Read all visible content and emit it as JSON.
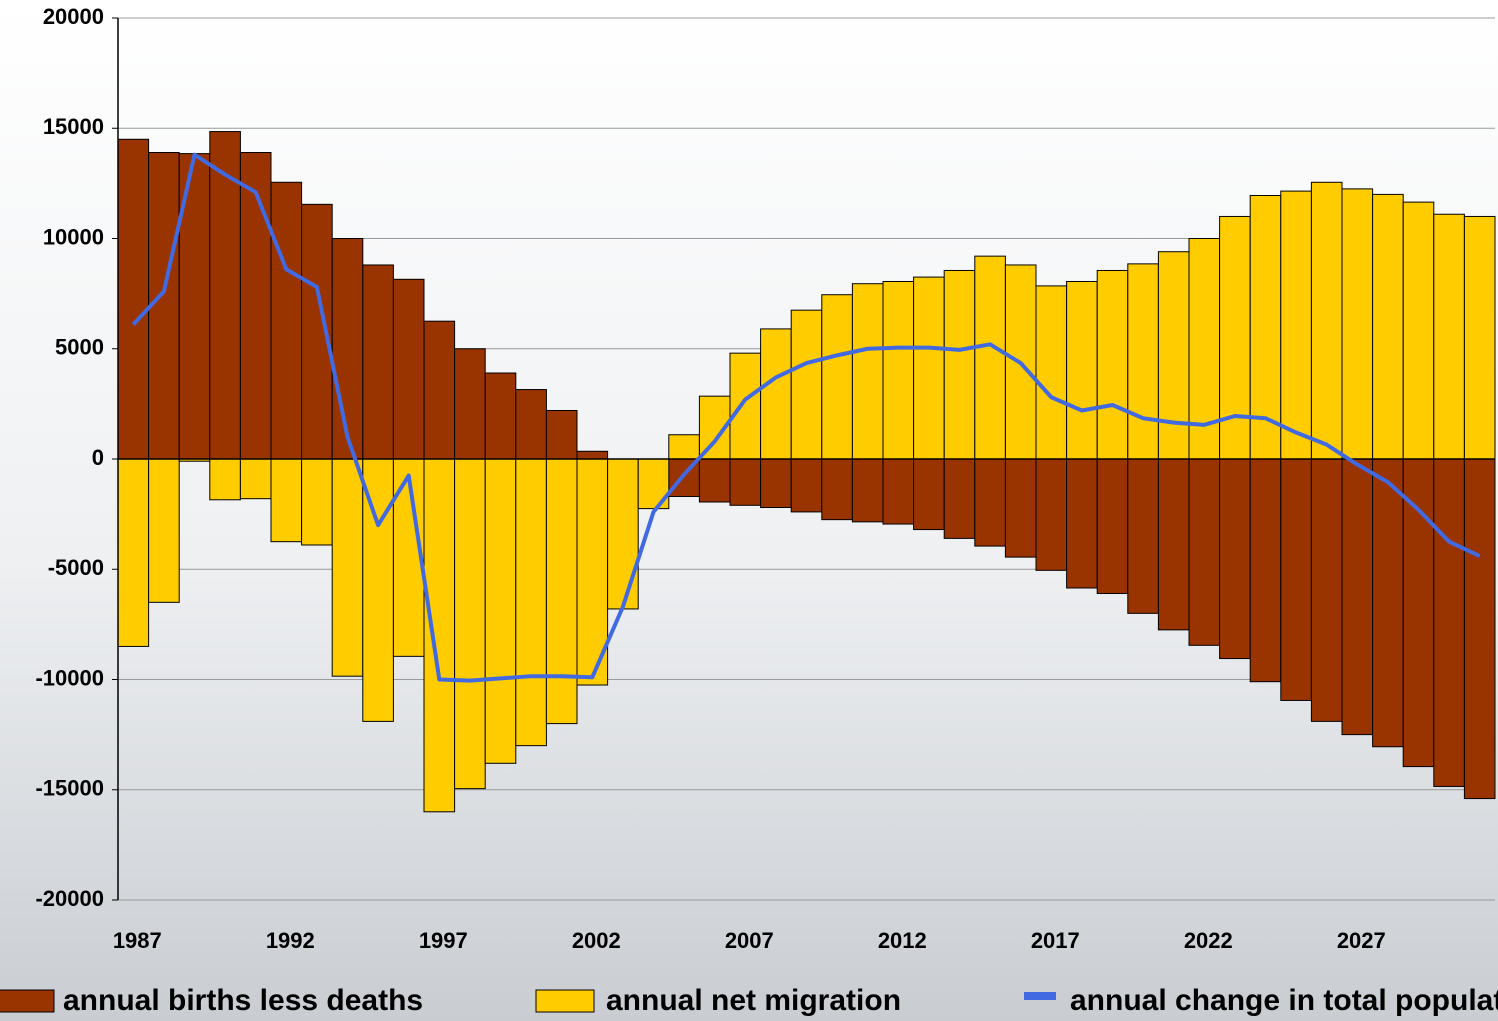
{
  "chart_data": {
    "type": "bar",
    "categories": [
      "1987",
      null,
      null,
      null,
      null,
      "1992",
      null,
      null,
      null,
      null,
      "1997",
      null,
      null,
      null,
      null,
      "2002",
      null,
      null,
      null,
      null,
      "2007",
      null,
      null,
      null,
      null,
      "2012",
      null,
      null,
      null,
      null,
      "2017",
      null,
      null,
      null,
      null,
      "2022",
      null,
      null,
      null,
      null,
      "2027",
      null,
      null,
      null,
      null
    ],
    "series": [
      {
        "name": "annual births less deaths",
        "color": "#993300",
        "kind": "bar",
        "values": [
          14500,
          13900,
          13850,
          14850,
          13900,
          12550,
          11550,
          10000,
          8800,
          8150,
          6250,
          5000,
          3900,
          3150,
          2200,
          350,
          0,
          0,
          -1700,
          -1950,
          -2100,
          -2200,
          -2400,
          -2750,
          -2850,
          -2950,
          -3200,
          -3600,
          -3950,
          -4450,
          -5050,
          -5850,
          -6100,
          -7000,
          -7750,
          -8450,
          -9050,
          -10100,
          -10950,
          -11900,
          -12500,
          -13050,
          -13950,
          -14850,
          -15400
        ]
      },
      {
        "name": "annual net migration",
        "color": "#ffcc00",
        "kind": "bar",
        "values": [
          -8500,
          -6500,
          -100,
          -1850,
          -1800,
          -3750,
          -3900,
          -9850,
          -11900,
          -8950,
          -16000,
          -14950,
          -13800,
          -13000,
          -12000,
          -10250,
          -6800,
          -2250,
          1100,
          2850,
          4800,
          5900,
          6750,
          7450,
          7950,
          8050,
          8250,
          8550,
          9200,
          8800,
          7850,
          8050,
          8550,
          8850,
          9400,
          10000,
          11000,
          11950,
          12150,
          12550,
          12250,
          12000,
          11650,
          11100,
          11000
        ]
      },
      {
        "name": "annual change in total population",
        "color": "#4169e1",
        "kind": "line",
        "values": [
          6100,
          7600,
          13800,
          12900,
          12100,
          8600,
          7800,
          1000,
          -3000,
          -750,
          -10000,
          -10050,
          -9950,
          -9850,
          -9850,
          -9900,
          -6700,
          -2400,
          -700,
          800,
          2700,
          3700,
          4350,
          4700,
          5000,
          5050,
          5050,
          4950,
          5200,
          4350,
          2800,
          2200,
          2450,
          1850,
          1650,
          1550,
          1950,
          1850,
          1200,
          650,
          -250,
          -1050,
          -2300,
          -3750,
          -4400
        ]
      }
    ],
    "ylim": [
      -20000,
      20000
    ],
    "yticks": [
      -20000,
      -15000,
      -10000,
      -5000,
      0,
      5000,
      10000,
      15000,
      20000
    ],
    "grid": true
  }
}
